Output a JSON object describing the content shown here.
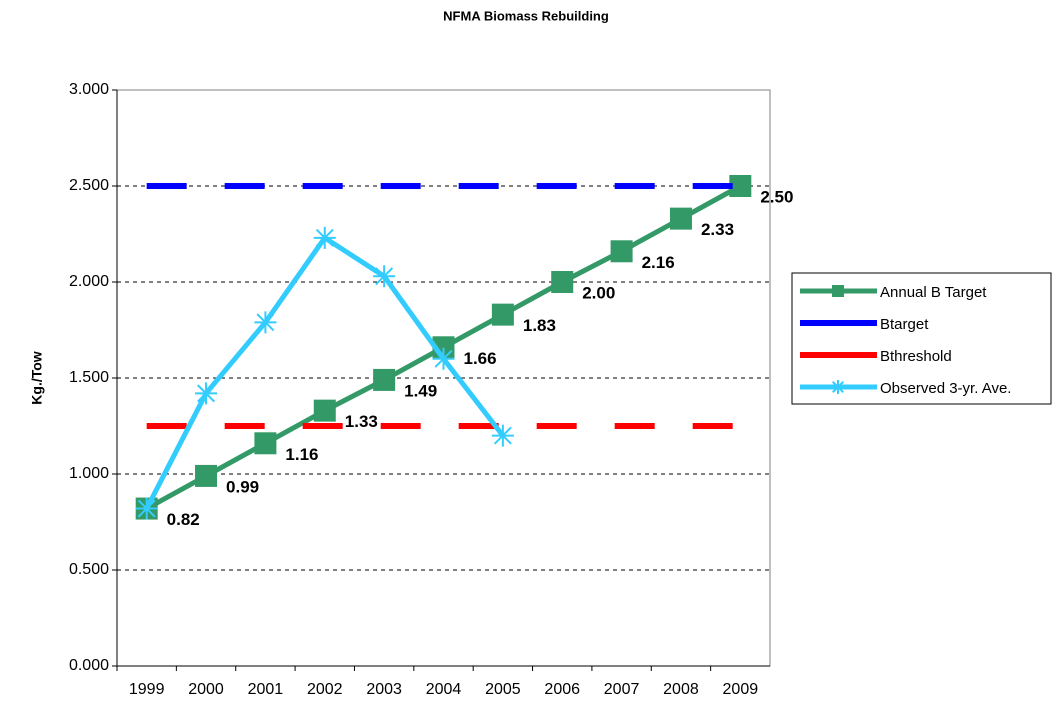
{
  "chart_data": {
    "type": "line",
    "title": "NFMA Biomass Rebuilding",
    "y_label": "Kg./Tow",
    "categories": [
      "1999",
      "2000",
      "2001",
      "2002",
      "2003",
      "2004",
      "2005",
      "2006",
      "2007",
      "2008",
      "2009"
    ],
    "ylim": [
      0,
      3
    ],
    "yticks": [
      {
        "value": 0,
        "label": "0.000"
      },
      {
        "value": 0.5,
        "label": "0.500"
      },
      {
        "value": 1,
        "label": "1.000"
      },
      {
        "value": 1.5,
        "label": "1.500"
      },
      {
        "value": 2,
        "label": "2.000"
      },
      {
        "value": 2.5,
        "label": "2.500"
      },
      {
        "value": 3,
        "label": "3.000"
      }
    ],
    "grid": true,
    "legend": "right",
    "series": [
      {
        "name": "Annual B Target",
        "color": "#339966",
        "marker": "square",
        "dash": false,
        "values": [
          0.82,
          0.99,
          1.16,
          1.33,
          1.49,
          1.66,
          1.83,
          2.0,
          2.16,
          2.33,
          2.5
        ],
        "value_labels": [
          "0.82",
          "0.99",
          "1.16",
          "1.33",
          "1.49",
          "1.66",
          "1.83",
          "2.00",
          "2.16",
          "2.33",
          "2.50"
        ]
      },
      {
        "name": "Btarget",
        "color": "#0000ff",
        "marker": "none",
        "dash": true,
        "values": [
          2.5,
          2.5,
          2.5,
          2.5,
          2.5,
          2.5,
          2.5,
          2.5,
          2.5,
          2.5,
          2.5
        ]
      },
      {
        "name": "Bthreshold",
        "color": "#ff0000",
        "marker": "none",
        "dash": true,
        "values": [
          1.25,
          1.25,
          1.25,
          1.25,
          1.25,
          1.25,
          1.25,
          1.25,
          1.25,
          1.25,
          1.25
        ]
      },
      {
        "name": "Observed 3-yr. Ave.",
        "color": "#33ccff",
        "marker": "star",
        "dash": false,
        "values": [
          0.82,
          1.42,
          1.79,
          2.23,
          2.03,
          1.6,
          1.2,
          null,
          null,
          null,
          null
        ]
      }
    ]
  }
}
